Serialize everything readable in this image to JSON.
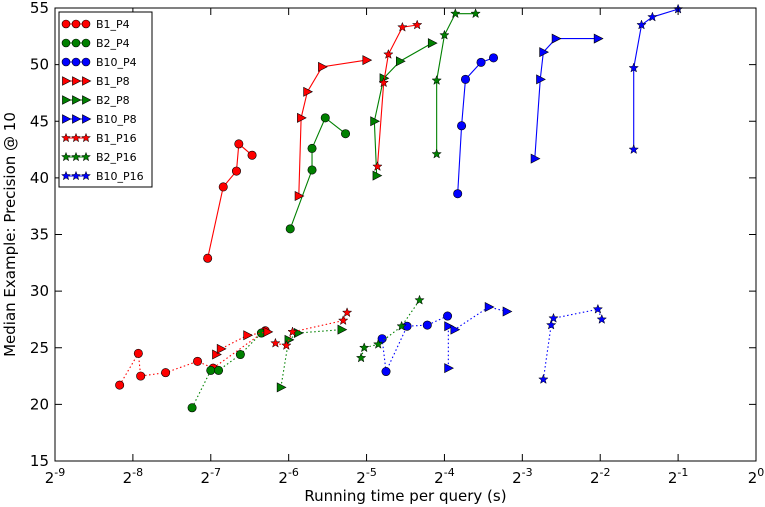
{
  "chart_data": {
    "type": "line",
    "title": "",
    "xlabel": "Running time per query (s)",
    "ylabel": "Median Example: Precision @ 10",
    "x_scale": "log2",
    "xlim_log2": [
      -9,
      0
    ],
    "ylim": [
      15,
      55
    ],
    "x_ticks": [
      {
        "exp": -9,
        "base": "2",
        "sup": "-9"
      },
      {
        "exp": -8,
        "base": "2",
        "sup": "-8"
      },
      {
        "exp": -7,
        "base": "2",
        "sup": "-7"
      },
      {
        "exp": -6,
        "base": "2",
        "sup": "-6"
      },
      {
        "exp": -5,
        "base": "2",
        "sup": "-5"
      },
      {
        "exp": -4,
        "base": "2",
        "sup": "-4"
      },
      {
        "exp": -3,
        "base": "2",
        "sup": "-3"
      },
      {
        "exp": -2,
        "base": "2",
        "sup": "-2"
      },
      {
        "exp": -1,
        "base": "2",
        "sup": "-1"
      },
      {
        "exp": 0,
        "base": "2",
        "sup": "0"
      }
    ],
    "y_ticks": [
      15,
      20,
      25,
      30,
      35,
      40,
      45,
      50,
      55
    ],
    "legend_position": "top-left",
    "series": [
      {
        "name": "B1_P4",
        "color": "#ff0000",
        "marker": "circle",
        "linestyle": "solid",
        "points": [
          [
            -7.04,
            32.9
          ],
          [
            -6.84,
            39.2
          ],
          [
            -6.67,
            40.6
          ],
          [
            -6.64,
            43.0
          ],
          [
            -6.47,
            42.0
          ]
        ]
      },
      {
        "name": "B2_P4",
        "color": "#008000",
        "marker": "circle",
        "linestyle": "solid",
        "points": [
          [
            -5.98,
            35.5
          ],
          [
            -5.7,
            40.7
          ],
          [
            -5.7,
            42.6
          ],
          [
            -5.53,
            45.3
          ],
          [
            -5.27,
            43.9
          ]
        ]
      },
      {
        "name": "B10_P4",
        "color": "#0000ff",
        "marker": "circle",
        "linestyle": "solid",
        "points": [
          [
            -3.83,
            38.6
          ],
          [
            -3.78,
            44.6
          ],
          [
            -3.73,
            48.7
          ],
          [
            -3.53,
            50.2
          ],
          [
            -3.37,
            50.6
          ]
        ]
      },
      {
        "name": "B1_P8",
        "color": "#ff0000",
        "marker": "triangle",
        "linestyle": "solid",
        "points": [
          [
            -5.87,
            38.4
          ],
          [
            -5.84,
            45.3
          ],
          [
            -5.76,
            47.6
          ],
          [
            -5.57,
            49.8
          ],
          [
            -5.0,
            50.4
          ]
        ]
      },
      {
        "name": "B2_P8",
        "color": "#008000",
        "marker": "triangle",
        "linestyle": "solid",
        "points": [
          [
            -4.87,
            40.2
          ],
          [
            -4.9,
            45.0
          ],
          [
            -4.78,
            48.8
          ],
          [
            -4.57,
            50.3
          ],
          [
            -4.16,
            51.9
          ]
        ]
      },
      {
        "name": "B10_P8",
        "color": "#0000ff",
        "marker": "triangle",
        "linestyle": "solid",
        "points": [
          [
            -2.84,
            41.7
          ],
          [
            -2.77,
            48.7
          ],
          [
            -2.73,
            51.1
          ],
          [
            -2.57,
            52.3
          ],
          [
            -2.03,
            52.3
          ]
        ]
      },
      {
        "name": "B1_P16",
        "color": "#ff0000",
        "marker": "star",
        "linestyle": "solid",
        "points": [
          [
            -4.86,
            41.0
          ],
          [
            -4.78,
            48.4
          ],
          [
            -4.72,
            50.9
          ],
          [
            -4.54,
            53.3
          ],
          [
            -4.35,
            53.5
          ]
        ]
      },
      {
        "name": "B2_P16",
        "color": "#008000",
        "marker": "star",
        "linestyle": "solid",
        "points": [
          [
            -4.1,
            42.1
          ],
          [
            -4.1,
            48.6
          ],
          [
            -4.0,
            52.6
          ],
          [
            -3.86,
            54.5
          ],
          [
            -3.6,
            54.5
          ]
        ]
      },
      {
        "name": "B10_P16",
        "color": "#0000ff",
        "marker": "star",
        "linestyle": "solid",
        "points": [
          [
            -1.57,
            42.5
          ],
          [
            -1.57,
            49.7
          ],
          [
            -1.47,
            53.5
          ],
          [
            -1.33,
            54.2
          ],
          [
            -1.0,
            54.9
          ]
        ]
      },
      {
        "name": "B1_P4 (dotted)",
        "color": "#ff0000",
        "marker": "circle",
        "linestyle": "dotted",
        "in_legend": false,
        "points": [
          [
            -8.17,
            21.7
          ],
          [
            -7.93,
            24.5
          ],
          [
            -7.9,
            22.5
          ],
          [
            -7.58,
            22.8
          ],
          [
            -7.17,
            23.8
          ],
          [
            -6.97,
            23.2
          ],
          [
            -6.3,
            26.5
          ]
        ]
      },
      {
        "name": "B2_P4 (dotted)",
        "color": "#008000",
        "marker": "circle",
        "linestyle": "dotted",
        "in_legend": false,
        "points": [
          [
            -7.24,
            19.7
          ],
          [
            -7.0,
            23.0
          ],
          [
            -6.9,
            23.0
          ],
          [
            -6.62,
            24.4
          ],
          [
            -6.35,
            26.3
          ]
        ]
      },
      {
        "name": "B10_P4 (dotted)",
        "color": "#0000ff",
        "marker": "circle",
        "linestyle": "dotted",
        "in_legend": false,
        "points": [
          [
            -4.8,
            25.8
          ],
          [
            -4.75,
            22.9
          ],
          [
            -4.48,
            26.9
          ],
          [
            -4.22,
            27.0
          ],
          [
            -3.96,
            27.8
          ]
        ]
      },
      {
        "name": "B1_P8 (dotted)",
        "color": "#ff0000",
        "marker": "triangle",
        "linestyle": "dotted",
        "in_legend": false,
        "points": [
          [
            -6.93,
            24.4
          ],
          [
            -6.87,
            24.9
          ],
          [
            -6.53,
            26.1
          ],
          [
            -6.27,
            26.4
          ]
        ]
      },
      {
        "name": "B2_P8 (dotted)",
        "color": "#008000",
        "marker": "triangle",
        "linestyle": "dotted",
        "in_legend": false,
        "points": [
          [
            -6.1,
            21.5
          ],
          [
            -6.0,
            25.7
          ],
          [
            -5.88,
            26.3
          ],
          [
            -5.32,
            26.6
          ]
        ]
      },
      {
        "name": "B10_P8 (dotted)",
        "color": "#0000ff",
        "marker": "triangle",
        "linestyle": "dotted",
        "in_legend": false,
        "points": [
          [
            -3.95,
            23.2
          ],
          [
            -3.95,
            26.9
          ],
          [
            -3.87,
            26.6
          ],
          [
            -3.43,
            28.6
          ],
          [
            -3.2,
            28.2
          ]
        ]
      },
      {
        "name": "B1_P16 (dotted)",
        "color": "#ff0000",
        "marker": "star",
        "linestyle": "dotted",
        "in_legend": false,
        "points": [
          [
            -6.17,
            25.4
          ],
          [
            -6.03,
            25.2
          ],
          [
            -5.95,
            26.4
          ],
          [
            -5.3,
            27.4
          ],
          [
            -5.25,
            28.1
          ]
        ]
      },
      {
        "name": "B2_P16 (dotted)",
        "color": "#008000",
        "marker": "star",
        "linestyle": "dotted",
        "in_legend": false,
        "points": [
          [
            -5.07,
            24.1
          ],
          [
            -5.03,
            25.0
          ],
          [
            -4.85,
            25.3
          ],
          [
            -4.55,
            26.9
          ],
          [
            -4.32,
            29.2
          ]
        ]
      },
      {
        "name": "B10_P16 (dotted)",
        "color": "#0000ff",
        "marker": "star",
        "linestyle": "dotted",
        "in_legend": false,
        "points": [
          [
            -2.73,
            22.2
          ],
          [
            -2.63,
            27.0
          ],
          [
            -2.6,
            27.6
          ],
          [
            -2.03,
            28.4
          ],
          [
            -1.98,
            27.5
          ]
        ]
      }
    ]
  }
}
